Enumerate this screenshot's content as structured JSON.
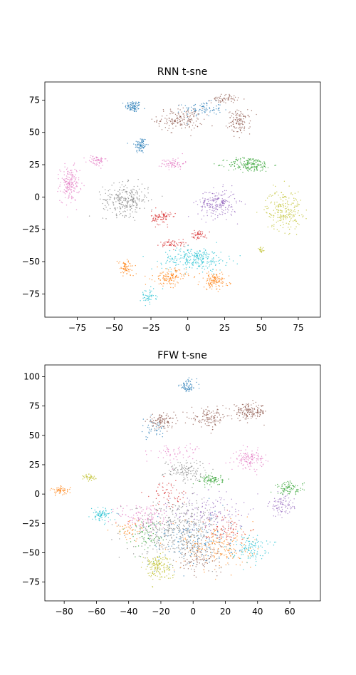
{
  "chart_data": [
    {
      "type": "scatter",
      "title": "RNN t-sne",
      "xlabel": "",
      "ylabel": "",
      "xlim": [
        -97,
        90
      ],
      "ylim": [
        -93,
        89
      ],
      "xticks": [
        -75,
        -50,
        -25,
        0,
        25,
        50,
        75
      ],
      "yticks": [
        -75,
        -50,
        -25,
        0,
        25,
        50,
        75
      ],
      "tick_labels_x": [
        "−75",
        "−50",
        "−25",
        "0",
        "25",
        "50",
        "75"
      ],
      "tick_labels_y": [
        "−75",
        "−50",
        "−25",
        "0",
        "25",
        "50",
        "75"
      ],
      "grid": false,
      "clusters": [
        {
          "color": "#1f77b4",
          "center": [
            -37,
            70
          ],
          "spread": [
            5,
            4
          ],
          "count": 90
        },
        {
          "color": "#1f77b4",
          "center": [
            -32,
            40
          ],
          "spread": [
            4,
            6
          ],
          "count": 80
        },
        {
          "color": "#1f77b4",
          "center": [
            10,
            68
          ],
          "spread": [
            12,
            5
          ],
          "count": 90
        },
        {
          "color": "#8c564b",
          "center": [
            -5,
            60
          ],
          "spread": [
            14,
            8
          ],
          "count": 170
        },
        {
          "color": "#8c564b",
          "center": [
            35,
            58
          ],
          "spread": [
            7,
            8
          ],
          "count": 120
        },
        {
          "color": "#8c564b",
          "center": [
            25,
            76
          ],
          "spread": [
            8,
            3
          ],
          "count": 60
        },
        {
          "color": "#e377c2",
          "center": [
            -80,
            10
          ],
          "spread": [
            6,
            12
          ],
          "count": 180
        },
        {
          "color": "#e377c2",
          "center": [
            -62,
            28
          ],
          "spread": [
            6,
            4
          ],
          "count": 60
        },
        {
          "color": "#e377c2",
          "center": [
            -10,
            26
          ],
          "spread": [
            7,
            4
          ],
          "count": 70
        },
        {
          "color": "#2ca02c",
          "center": [
            42,
            25
          ],
          "spread": [
            14,
            5
          ],
          "count": 190
        },
        {
          "color": "#7f7f7f",
          "center": [
            -42,
            -2
          ],
          "spread": [
            14,
            11
          ],
          "count": 280
        },
        {
          "color": "#9467bd",
          "center": [
            20,
            -5
          ],
          "spread": [
            12,
            10
          ],
          "count": 220
        },
        {
          "color": "#bcbd22",
          "center": [
            65,
            -10
          ],
          "spread": [
            11,
            14
          ],
          "count": 220
        },
        {
          "color": "#bcbd22",
          "center": [
            50,
            -41
          ],
          "spread": [
            2,
            3
          ],
          "count": 20
        },
        {
          "color": "#d62728",
          "center": [
            -18,
            -16
          ],
          "spread": [
            6,
            5
          ],
          "count": 90
        },
        {
          "color": "#d62728",
          "center": [
            -10,
            -36
          ],
          "spread": [
            8,
            3
          ],
          "count": 60
        },
        {
          "color": "#d62728",
          "center": [
            8,
            -29
          ],
          "spread": [
            5,
            3
          ],
          "count": 50
        },
        {
          "color": "#17becf",
          "center": [
            5,
            -48
          ],
          "spread": [
            20,
            8
          ],
          "count": 260
        },
        {
          "color": "#17becf",
          "center": [
            -27,
            -77
          ],
          "spread": [
            5,
            5
          ],
          "count": 50
        },
        {
          "color": "#ff7f0e",
          "center": [
            -42,
            -55
          ],
          "spread": [
            5,
            6
          ],
          "count": 70
        },
        {
          "color": "#ff7f0e",
          "center": [
            -12,
            -62
          ],
          "spread": [
            10,
            6
          ],
          "count": 130
        },
        {
          "color": "#ff7f0e",
          "center": [
            18,
            -65
          ],
          "spread": [
            9,
            6
          ],
          "count": 130
        }
      ]
    },
    {
      "type": "scatter",
      "title": "FFW t-sne",
      "xlabel": "",
      "ylabel": "",
      "xlim": [
        -92,
        79
      ],
      "ylim": [
        -91,
        110
      ],
      "xticks": [
        -80,
        -60,
        -40,
        -20,
        0,
        20,
        40,
        60
      ],
      "yticks": [
        -75,
        -50,
        -25,
        0,
        25,
        50,
        75,
        100
      ],
      "tick_labels_x": [
        "−80",
        "−60",
        "−40",
        "−20",
        "0",
        "20",
        "40",
        "60"
      ],
      "tick_labels_y": [
        "−75",
        "−50",
        "−25",
        "0",
        "25",
        "50",
        "75",
        "100"
      ],
      "grid": false,
      "clusters": [
        {
          "color": "#1f77b4",
          "center": [
            -3,
            92
          ],
          "spread": [
            5,
            5
          ],
          "count": 70
        },
        {
          "color": "#8c564b",
          "center": [
            -20,
            62
          ],
          "spread": [
            8,
            5
          ],
          "count": 110
        },
        {
          "color": "#8c564b",
          "center": [
            35,
            70
          ],
          "spread": [
            10,
            6
          ],
          "count": 170
        },
        {
          "color": "#8c564b",
          "center": [
            10,
            65
          ],
          "spread": [
            10,
            7
          ],
          "count": 120
        },
        {
          "color": "#1f77b4",
          "center": [
            -25,
            55
          ],
          "spread": [
            8,
            8
          ],
          "count": 40
        },
        {
          "color": "#e377c2",
          "center": [
            35,
            30
          ],
          "spread": [
            8,
            7
          ],
          "count": 130
        },
        {
          "color": "#e377c2",
          "center": [
            -10,
            35
          ],
          "spread": [
            14,
            8
          ],
          "count": 60
        },
        {
          "color": "#7f7f7f",
          "center": [
            -5,
            20
          ],
          "spread": [
            12,
            8
          ],
          "count": 130
        },
        {
          "color": "#ff7f0e",
          "center": [
            -82,
            3
          ],
          "spread": [
            5,
            3
          ],
          "count": 60
        },
        {
          "color": "#bcbd22",
          "center": [
            -64,
            14
          ],
          "spread": [
            4,
            3
          ],
          "count": 40
        },
        {
          "color": "#2ca02c",
          "center": [
            12,
            12
          ],
          "spread": [
            6,
            4
          ],
          "count": 90
        },
        {
          "color": "#2ca02c",
          "center": [
            60,
            5
          ],
          "spread": [
            8,
            5
          ],
          "count": 90
        },
        {
          "color": "#9467bd",
          "center": [
            55,
            -10
          ],
          "spread": [
            7,
            8
          ],
          "count": 90
        },
        {
          "color": "#17becf",
          "center": [
            -57,
            -18
          ],
          "spread": [
            6,
            5
          ],
          "count": 80
        },
        {
          "color": "#d62728",
          "center": [
            -15,
            0
          ],
          "spread": [
            10,
            10
          ],
          "count": 60
        },
        {
          "color": "#7f7f7f",
          "center": [
            -10,
            -30
          ],
          "spread": [
            25,
            22
          ],
          "count": 480
        },
        {
          "color": "#1f77b4",
          "center": [
            0,
            -40
          ],
          "spread": [
            25,
            20
          ],
          "count": 180
        },
        {
          "color": "#ff7f0e",
          "center": [
            15,
            -45
          ],
          "spread": [
            20,
            18
          ],
          "count": 200
        },
        {
          "color": "#e377c2",
          "center": [
            -30,
            -20
          ],
          "spread": [
            15,
            12
          ],
          "count": 120
        },
        {
          "color": "#9467bd",
          "center": [
            10,
            -15
          ],
          "spread": [
            20,
            15
          ],
          "count": 140
        },
        {
          "color": "#17becf",
          "center": [
            35,
            -45
          ],
          "spread": [
            10,
            10
          ],
          "count": 110
        },
        {
          "color": "#d62728",
          "center": [
            20,
            -30
          ],
          "spread": [
            12,
            10
          ],
          "count": 80
        },
        {
          "color": "#bcbd22",
          "center": [
            -22,
            -62
          ],
          "spread": [
            8,
            10
          ],
          "count": 160
        },
        {
          "color": "#2ca02c",
          "center": [
            -30,
            -35
          ],
          "spread": [
            10,
            12
          ],
          "count": 60
        },
        {
          "color": "#8c564b",
          "center": [
            5,
            -55
          ],
          "spread": [
            15,
            12
          ],
          "count": 90
        },
        {
          "color": "#ff7f0e",
          "center": [
            -40,
            -30
          ],
          "spread": [
            8,
            8
          ],
          "count": 50
        }
      ]
    }
  ]
}
